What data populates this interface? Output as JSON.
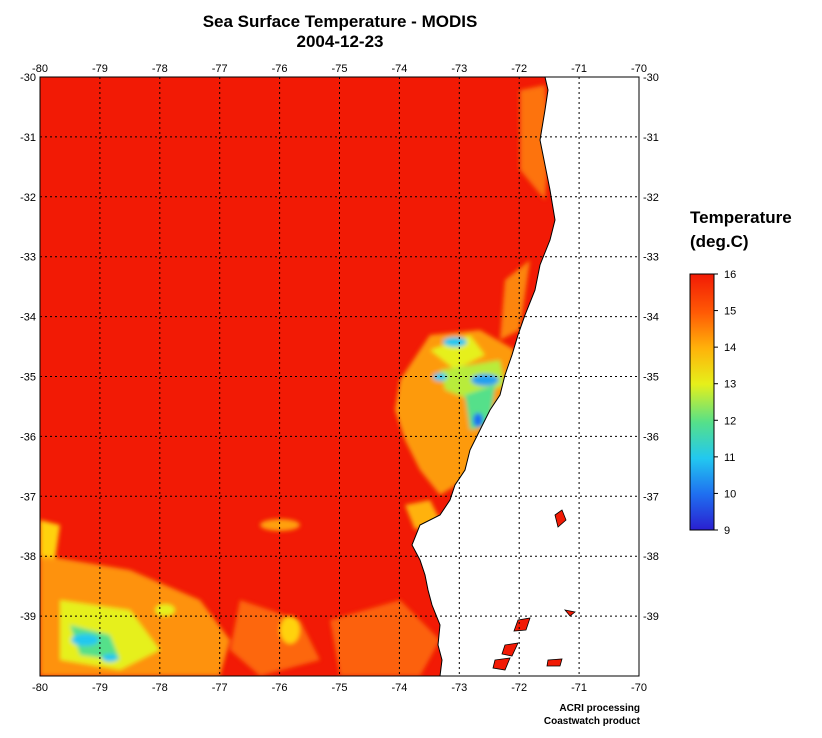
{
  "title": "Sea Surface Temperature - MODIS",
  "date": "2004-12-23",
  "legend": {
    "title_line1": "Temperature",
    "title_line2": "(deg.C)",
    "min": 9,
    "max": 16,
    "ticks": [
      "16",
      "15",
      "14",
      "13",
      "12",
      "11",
      "10",
      "9"
    ]
  },
  "credits": {
    "line1": "ACRI processing",
    "line2": "Coastwatch product"
  },
  "map": {
    "lon_range": [
      -80,
      -70
    ],
    "lat_range": [
      -40,
      -30
    ],
    "lon_ticks": [
      "-80",
      "-79",
      "-78",
      "-77",
      "-76",
      "-75",
      "-74",
      "-73",
      "-72",
      "-71",
      "-70"
    ],
    "lat_ticks": [
      "-30",
      "-31",
      "-32",
      "-33",
      "-34",
      "-35",
      "-36",
      "-37",
      "-38",
      "-39"
    ],
    "grid": true,
    "ocean_color": "#f21a05",
    "land_color": "#ffffff",
    "coast_color": "#000000"
  }
}
